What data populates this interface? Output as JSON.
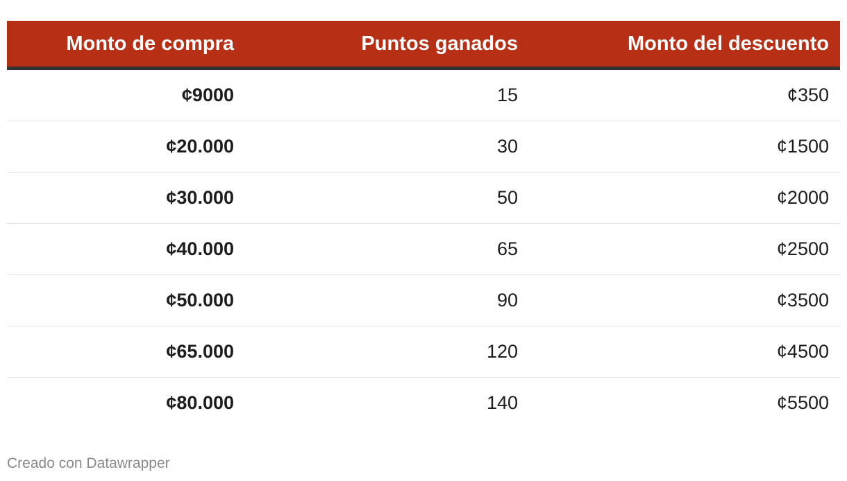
{
  "chart_data": {
    "type": "table",
    "columns": [
      "Monto de compra",
      "Puntos ganados",
      "Monto del descuento"
    ],
    "rows": [
      [
        "¢9000",
        "15",
        "¢350"
      ],
      [
        "¢20.000",
        "30",
        "¢1500"
      ],
      [
        "¢30.000",
        "50",
        "¢2000"
      ],
      [
        "¢40.000",
        "65",
        "¢2500"
      ],
      [
        "¢50.000",
        "90",
        "¢3500"
      ],
      [
        "¢65.000",
        "120",
        "¢4500"
      ],
      [
        "¢80.000",
        "140",
        "¢5500"
      ]
    ]
  },
  "footer": {
    "credit": "Creado con Datawrapper"
  },
  "colors": {
    "header_background": "#b73015",
    "header_text": "#ffffff",
    "header_rule": "#333333",
    "row_divider": "#e3e3e3",
    "footer_text": "#8a8a8a"
  }
}
